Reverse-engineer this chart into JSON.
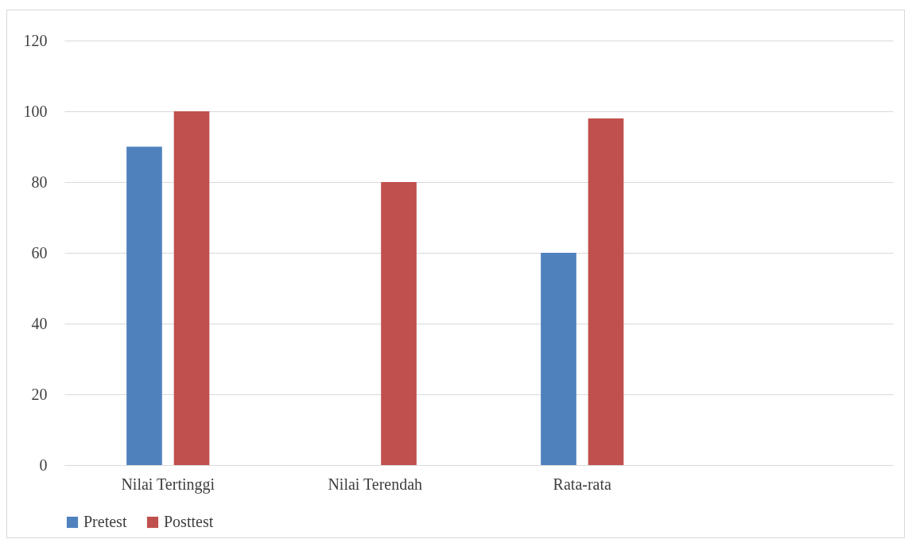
{
  "chart_data": {
    "type": "bar",
    "categories": [
      "Nilai Tertinggi",
      "Nilai Terendah",
      "Rata-rata",
      null
    ],
    "series": [
      {
        "name": "Pretest",
        "color": "#4f81bd",
        "values": [
          90,
          null,
          60,
          null
        ]
      },
      {
        "name": "Posttest",
        "color": "#c0504d",
        "values": [
          100,
          80,
          98,
          null
        ]
      }
    ],
    "ylim": [
      0,
      120
    ],
    "yticks": [
      0,
      20,
      40,
      60,
      80,
      100,
      120
    ],
    "grid": "y",
    "legend": "bottom"
  }
}
